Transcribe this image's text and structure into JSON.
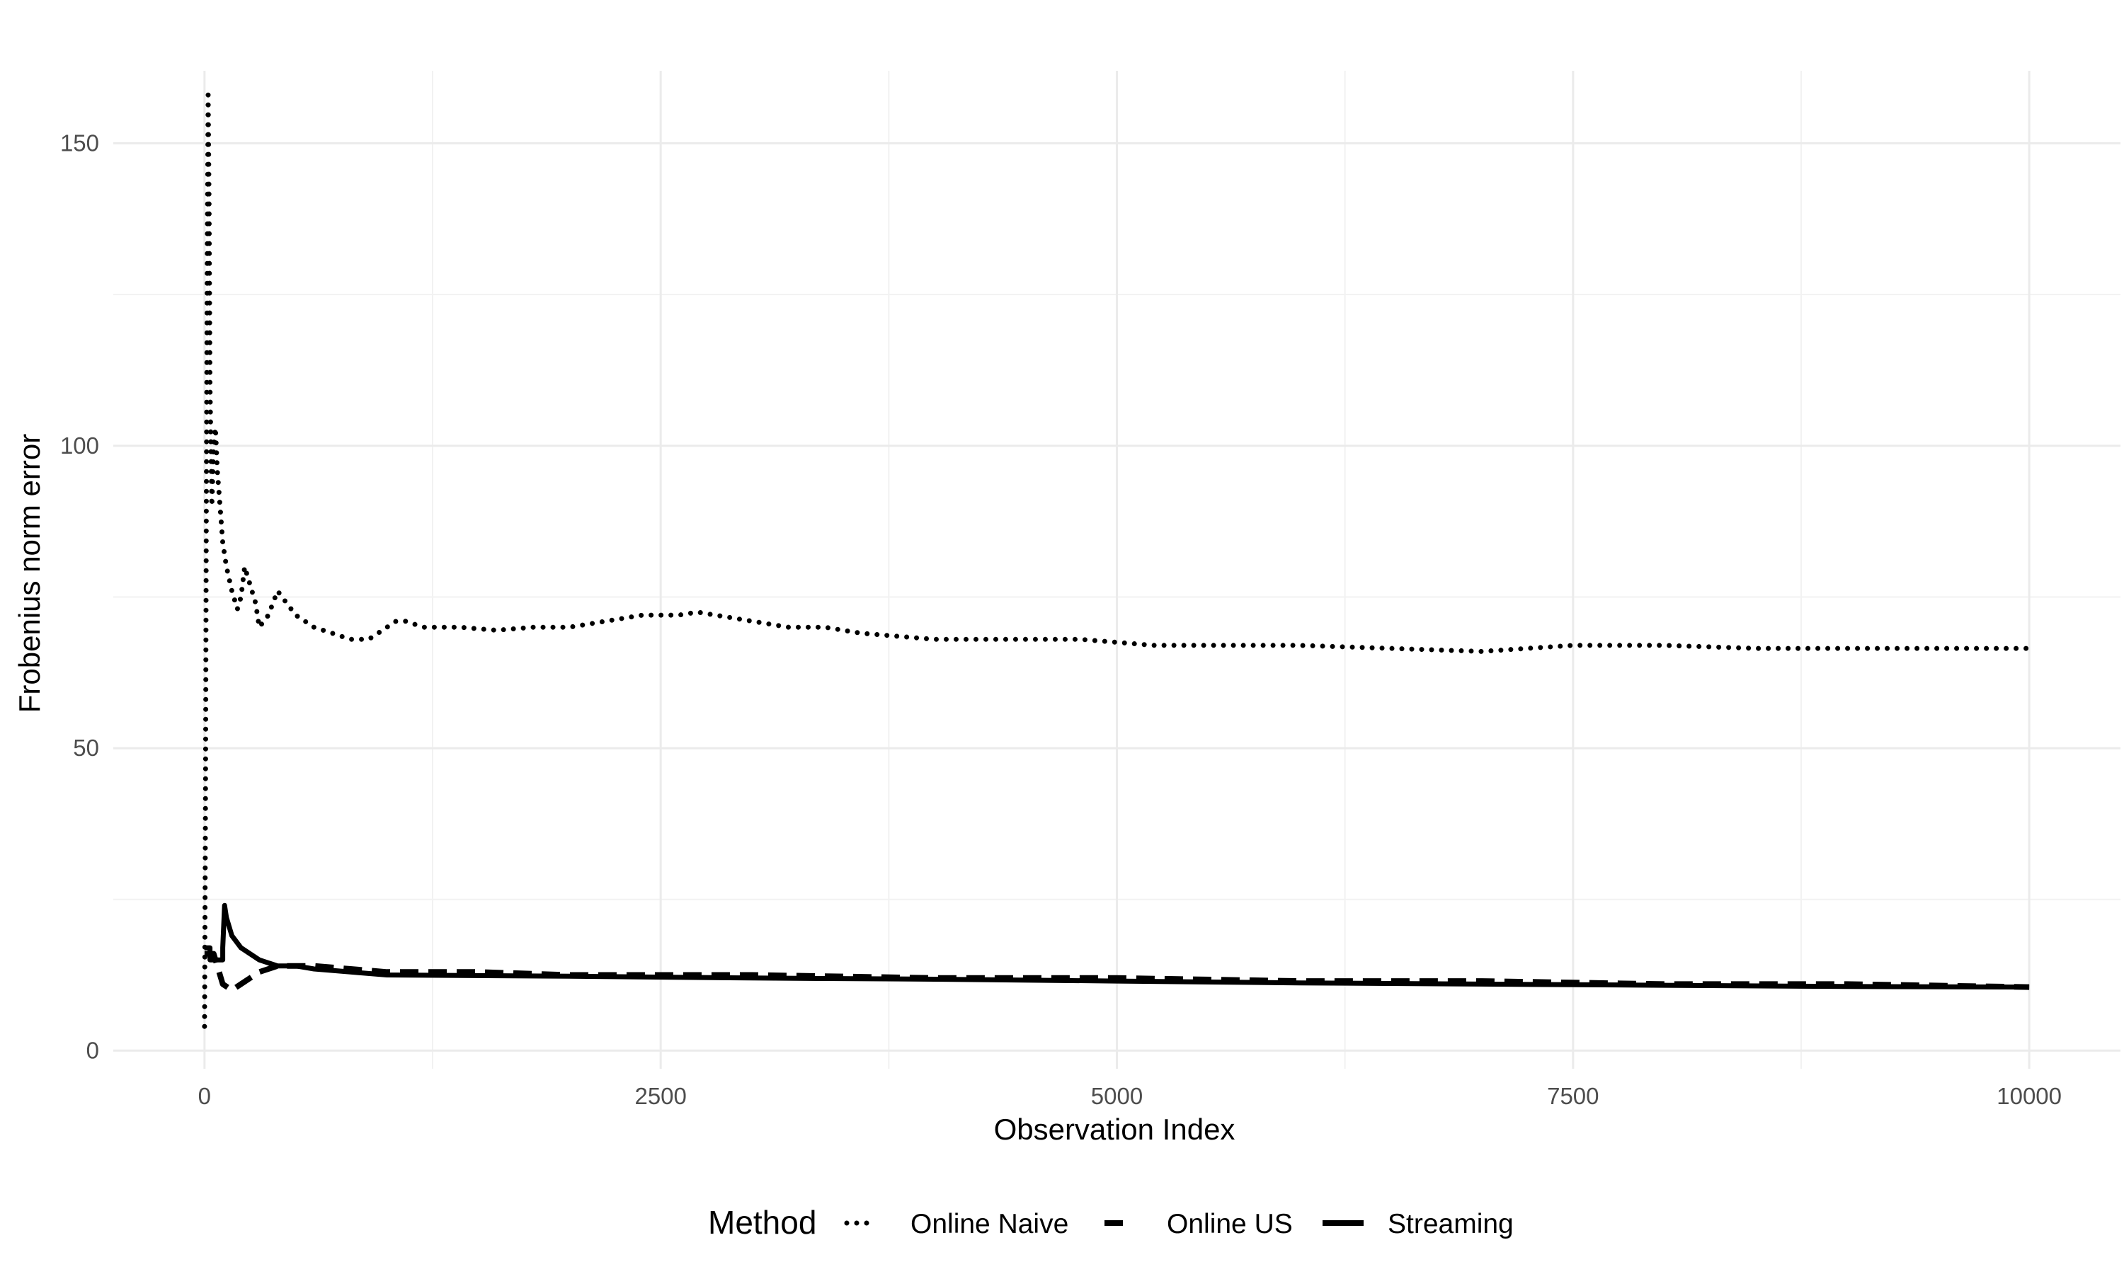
{
  "chart_data": {
    "type": "line",
    "title": "",
    "xlabel": "Observation Index",
    "ylabel": "Frobenius norm error",
    "xlim": [
      -500,
      10500
    ],
    "ylim": [
      -3,
      162
    ],
    "xticks": [
      0,
      2500,
      5000,
      7500,
      10000
    ],
    "xtick_labels": [
      "0",
      "2500",
      "5000",
      "7500",
      "10000"
    ],
    "yticks": [
      0,
      50,
      100,
      150
    ],
    "ytick_labels": [
      "0",
      "50",
      "100",
      "150"
    ],
    "grid": true,
    "legend": {
      "title": "Method",
      "position": "bottom",
      "entries": [
        "Online Naive",
        "Online US",
        "Streaming"
      ]
    },
    "series": [
      {
        "name": "Online Naive",
        "linetype": "dotted",
        "points": [
          [
            0,
            4
          ],
          [
            5,
            40
          ],
          [
            10,
            90
          ],
          [
            15,
            130
          ],
          [
            20,
            158
          ],
          [
            25,
            140
          ],
          [
            30,
            110
          ],
          [
            40,
            90
          ],
          [
            50,
            100
          ],
          [
            60,
            103
          ],
          [
            70,
            96
          ],
          [
            80,
            92
          ],
          [
            90,
            88
          ],
          [
            100,
            84
          ],
          [
            120,
            80
          ],
          [
            150,
            76
          ],
          [
            180,
            73
          ],
          [
            200,
            75
          ],
          [
            220,
            80
          ],
          [
            250,
            77
          ],
          [
            280,
            74
          ],
          [
            300,
            70
          ],
          [
            350,
            72
          ],
          [
            400,
            76
          ],
          [
            450,
            74
          ],
          [
            500,
            72
          ],
          [
            550,
            71
          ],
          [
            600,
            70
          ],
          [
            700,
            69
          ],
          [
            800,
            68
          ],
          [
            900,
            68
          ],
          [
            1000,
            70
          ],
          [
            1050,
            71
          ],
          [
            1100,
            71
          ],
          [
            1200,
            70
          ],
          [
            1400,
            70
          ],
          [
            1600,
            69.5
          ],
          [
            1800,
            70
          ],
          [
            2000,
            70
          ],
          [
            2200,
            71
          ],
          [
            2400,
            72
          ],
          [
            2600,
            72
          ],
          [
            2700,
            72.5
          ],
          [
            2800,
            72
          ],
          [
            3000,
            71
          ],
          [
            3200,
            70
          ],
          [
            3400,
            70
          ],
          [
            3600,
            69
          ],
          [
            3800,
            68.5
          ],
          [
            4000,
            68
          ],
          [
            4200,
            68
          ],
          [
            4400,
            68
          ],
          [
            4600,
            68
          ],
          [
            4800,
            68
          ],
          [
            5000,
            67.5
          ],
          [
            5200,
            67
          ],
          [
            5400,
            67
          ],
          [
            5600,
            67
          ],
          [
            5800,
            67
          ],
          [
            6000,
            67
          ],
          [
            6500,
            66.5
          ],
          [
            7000,
            66
          ],
          [
            7500,
            67
          ],
          [
            8000,
            67
          ],
          [
            8500,
            66.5
          ],
          [
            9000,
            66.5
          ],
          [
            9500,
            66.5
          ],
          [
            10000,
            66.5
          ]
        ]
      },
      {
        "name": "Online US",
        "linetype": "dashed",
        "points": [
          [
            0,
            16
          ],
          [
            50,
            16
          ],
          [
            100,
            11
          ],
          [
            150,
            10
          ],
          [
            200,
            11
          ],
          [
            300,
            13
          ],
          [
            400,
            14
          ],
          [
            500,
            14
          ],
          [
            600,
            14
          ],
          [
            800,
            13.5
          ],
          [
            1000,
            13
          ],
          [
            1500,
            13
          ],
          [
            2000,
            12.5
          ],
          [
            3000,
            12.5
          ],
          [
            4000,
            12
          ],
          [
            5000,
            12
          ],
          [
            6000,
            11.5
          ],
          [
            7000,
            11.5
          ],
          [
            8000,
            11
          ],
          [
            9000,
            11
          ],
          [
            10000,
            10.5
          ]
        ]
      },
      {
        "name": "Streaming",
        "linetype": "solid",
        "points": [
          [
            0,
            17
          ],
          [
            30,
            17
          ],
          [
            30,
            15
          ],
          [
            100,
            15
          ],
          [
            100,
            17
          ],
          [
            110,
            24
          ],
          [
            120,
            22
          ],
          [
            150,
            19
          ],
          [
            200,
            17
          ],
          [
            300,
            15
          ],
          [
            400,
            14
          ],
          [
            500,
            14
          ],
          [
            600,
            13.5
          ],
          [
            800,
            13
          ],
          [
            1000,
            12.5
          ],
          [
            2000,
            12.3
          ],
          [
            3000,
            12
          ],
          [
            4000,
            11.8
          ],
          [
            5000,
            11.5
          ],
          [
            6000,
            11.2
          ],
          [
            7000,
            11
          ],
          [
            8000,
            10.8
          ],
          [
            9000,
            10.6
          ],
          [
            10000,
            10.5
          ]
        ]
      }
    ]
  }
}
